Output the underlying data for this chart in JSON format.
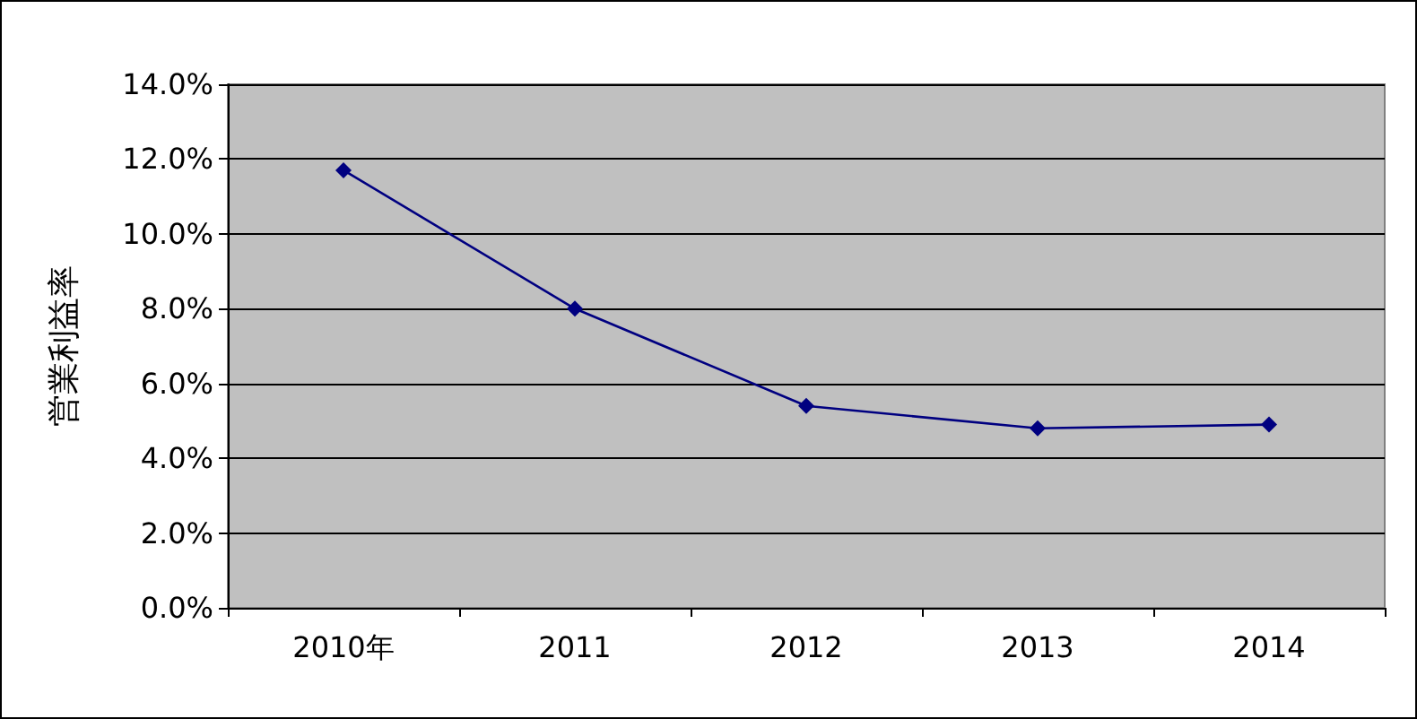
{
  "chart_data": {
    "type": "line",
    "ylabel": "営業利益率",
    "categories": [
      "2010年",
      "2011",
      "2012",
      "2013",
      "2014"
    ],
    "series": [
      {
        "color": "#000080",
        "values": [
          11.7,
          8.0,
          5.4,
          4.8,
          4.9
        ]
      }
    ],
    "ylim": [
      0,
      14
    ],
    "yticks": [
      {
        "value": 0,
        "label": "0.0%"
      },
      {
        "value": 2,
        "label": "2.0%"
      },
      {
        "value": 4,
        "label": "4.0%"
      },
      {
        "value": 6,
        "label": "6.0%"
      },
      {
        "value": 8,
        "label": "8.0%"
      },
      {
        "value": 10,
        "label": "10.0%"
      },
      {
        "value": 12,
        "label": "12.0%"
      },
      {
        "value": 14,
        "label": "14.0%"
      }
    ],
    "grid": "y",
    "marker": "diamond",
    "line_style": "solid"
  }
}
